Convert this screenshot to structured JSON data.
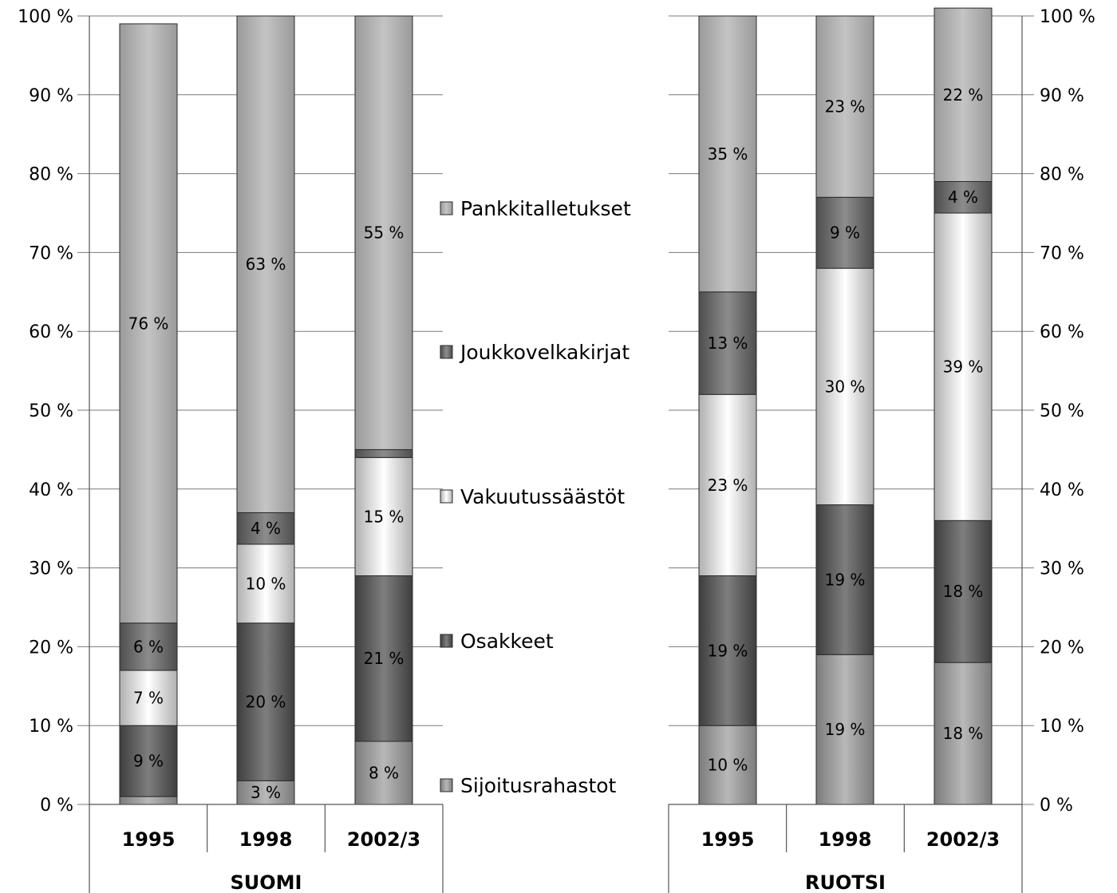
{
  "colors": {
    "Pankkitalletukset": "#b4b4b4",
    "Joukkovelkakirjat": "#7a7a7a",
    "Vakuutussäästöt": "#e6e6e6",
    "Osakkeet": "#6a6a6a",
    "Sijoitusrahastot": "#a0a0a0"
  },
  "chart_data": [
    {
      "type": "bar",
      "stacked": true,
      "title": "SUOMI",
      "categories": [
        "1995",
        "1998",
        "2002/3"
      ],
      "ylim": [
        0,
        100
      ],
      "yticks": [
        "0 %",
        "10 %",
        "20 %",
        "30 %",
        "40 %",
        "50 %",
        "60 %",
        "70 %",
        "80 %",
        "90 %",
        "100 %"
      ],
      "grid": true,
      "series": [
        {
          "name": "Sijoitusrahastot",
          "values": [
            1,
            3,
            8
          ],
          "labels": [
            "",
            "3 %",
            "8 %"
          ]
        },
        {
          "name": "Osakkeet",
          "values": [
            9,
            20,
            21
          ],
          "labels": [
            "9 %",
            "20 %",
            "21 %"
          ]
        },
        {
          "name": "Vakuutussäästöt",
          "values": [
            7,
            10,
            15
          ],
          "labels": [
            "7 %",
            "10 %",
            "15 %"
          ]
        },
        {
          "name": "Joukkovelkakirjat",
          "values": [
            6,
            4,
            1
          ],
          "labels": [
            "6 %",
            "4 %",
            ""
          ]
        },
        {
          "name": "Pankkitalletukset",
          "values": [
            76,
            63,
            55
          ],
          "labels": [
            "76 %",
            "63 %",
            "55 %"
          ]
        }
      ]
    },
    {
      "type": "bar",
      "stacked": true,
      "title": "RUOTSI",
      "categories": [
        "1995",
        "1998",
        "2002/3"
      ],
      "ylim": [
        0,
        100
      ],
      "yticks": [
        "0 %",
        "10 %",
        "20 %",
        "30 %",
        "40 %",
        "50 %",
        "60 %",
        "70 %",
        "80 %",
        "90 %",
        "100 %"
      ],
      "grid": true,
      "series": [
        {
          "name": "Sijoitusrahastot",
          "values": [
            10,
            19,
            18
          ],
          "labels": [
            "10 %",
            "19 %",
            "18 %"
          ]
        },
        {
          "name": "Osakkeet",
          "values": [
            19,
            19,
            18
          ],
          "labels": [
            "19 %",
            "19 %",
            "18 %"
          ]
        },
        {
          "name": "Vakuutussäästöt",
          "values": [
            23,
            30,
            39
          ],
          "labels": [
            "23 %",
            "30 %",
            "39 %"
          ]
        },
        {
          "name": "Joukkovelkakirjat",
          "values": [
            13,
            9,
            4
          ],
          "labels": [
            "13 %",
            "9 %",
            "4 %"
          ]
        },
        {
          "name": "Pankkitalletukset",
          "values": [
            35,
            23,
            22
          ],
          "labels": [
            "35 %",
            "23 %",
            "22 %"
          ]
        }
      ]
    }
  ],
  "legend": {
    "placement": "center",
    "items": [
      "Pankkitalletukset",
      "Joukkovelkakirjat",
      "Vakuutussäästöt",
      "Osakkeet",
      "Sijoitusrahastot"
    ]
  }
}
